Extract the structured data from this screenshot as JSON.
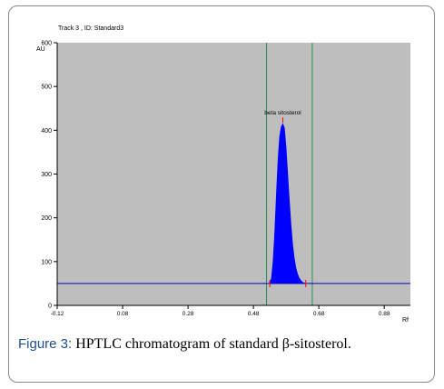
{
  "figure": {
    "track_title": "Track  3 , ID: Standard3",
    "caption_label": "Figure 3:",
    "caption_text": " HPTLC chromatogram of standard β-sitosterol."
  },
  "chart_data": {
    "type": "area",
    "title": "Track  3 , ID: Standard3",
    "ylabel": "AU",
    "xlabel": "Rf",
    "xlim": [
      -0.12,
      0.96
    ],
    "ylim": [
      0,
      600
    ],
    "x_ticks": [
      -0.12,
      0.08,
      0.28,
      0.48,
      0.68,
      0.88
    ],
    "x_tick_labels": [
      "-0.12",
      "0.08",
      "0.28",
      "0.48",
      "0.68",
      "0.88"
    ],
    "y_ticks": [
      0,
      100,
      200,
      300,
      400,
      500,
      600
    ],
    "y_tick_labels": [
      "0",
      "100",
      "200",
      "300",
      "400",
      "500",
      "600"
    ],
    "baseline": 50,
    "baseline_range": [
      -0.12,
      0.96
    ],
    "integration_window": [
      0.52,
      0.66
    ],
    "peak": {
      "label": "beta sitosterol",
      "rf_max": 0.57,
      "height": 415,
      "start": 0.53,
      "end": 0.64
    },
    "series": [
      {
        "x": [
          0.53,
          0.535,
          0.54,
          0.545,
          0.55,
          0.555,
          0.56,
          0.565,
          0.57,
          0.575,
          0.58,
          0.585,
          0.59,
          0.595,
          0.6,
          0.605,
          0.61,
          0.615,
          0.62,
          0.625,
          0.63,
          0.635,
          0.64
        ],
        "y": [
          50,
          62,
          100,
          165,
          250,
          330,
          385,
          408,
          415,
          405,
          360,
          300,
          240,
          185,
          140,
          108,
          86,
          72,
          63,
          57,
          53,
          51,
          50
        ]
      }
    ],
    "colors": {
      "plot_bg": "#bebebe",
      "fill": "#0000ff",
      "baseline": "#0000cc",
      "window": "#2e8b57",
      "marker": "#ff0000"
    },
    "grid": false
  }
}
